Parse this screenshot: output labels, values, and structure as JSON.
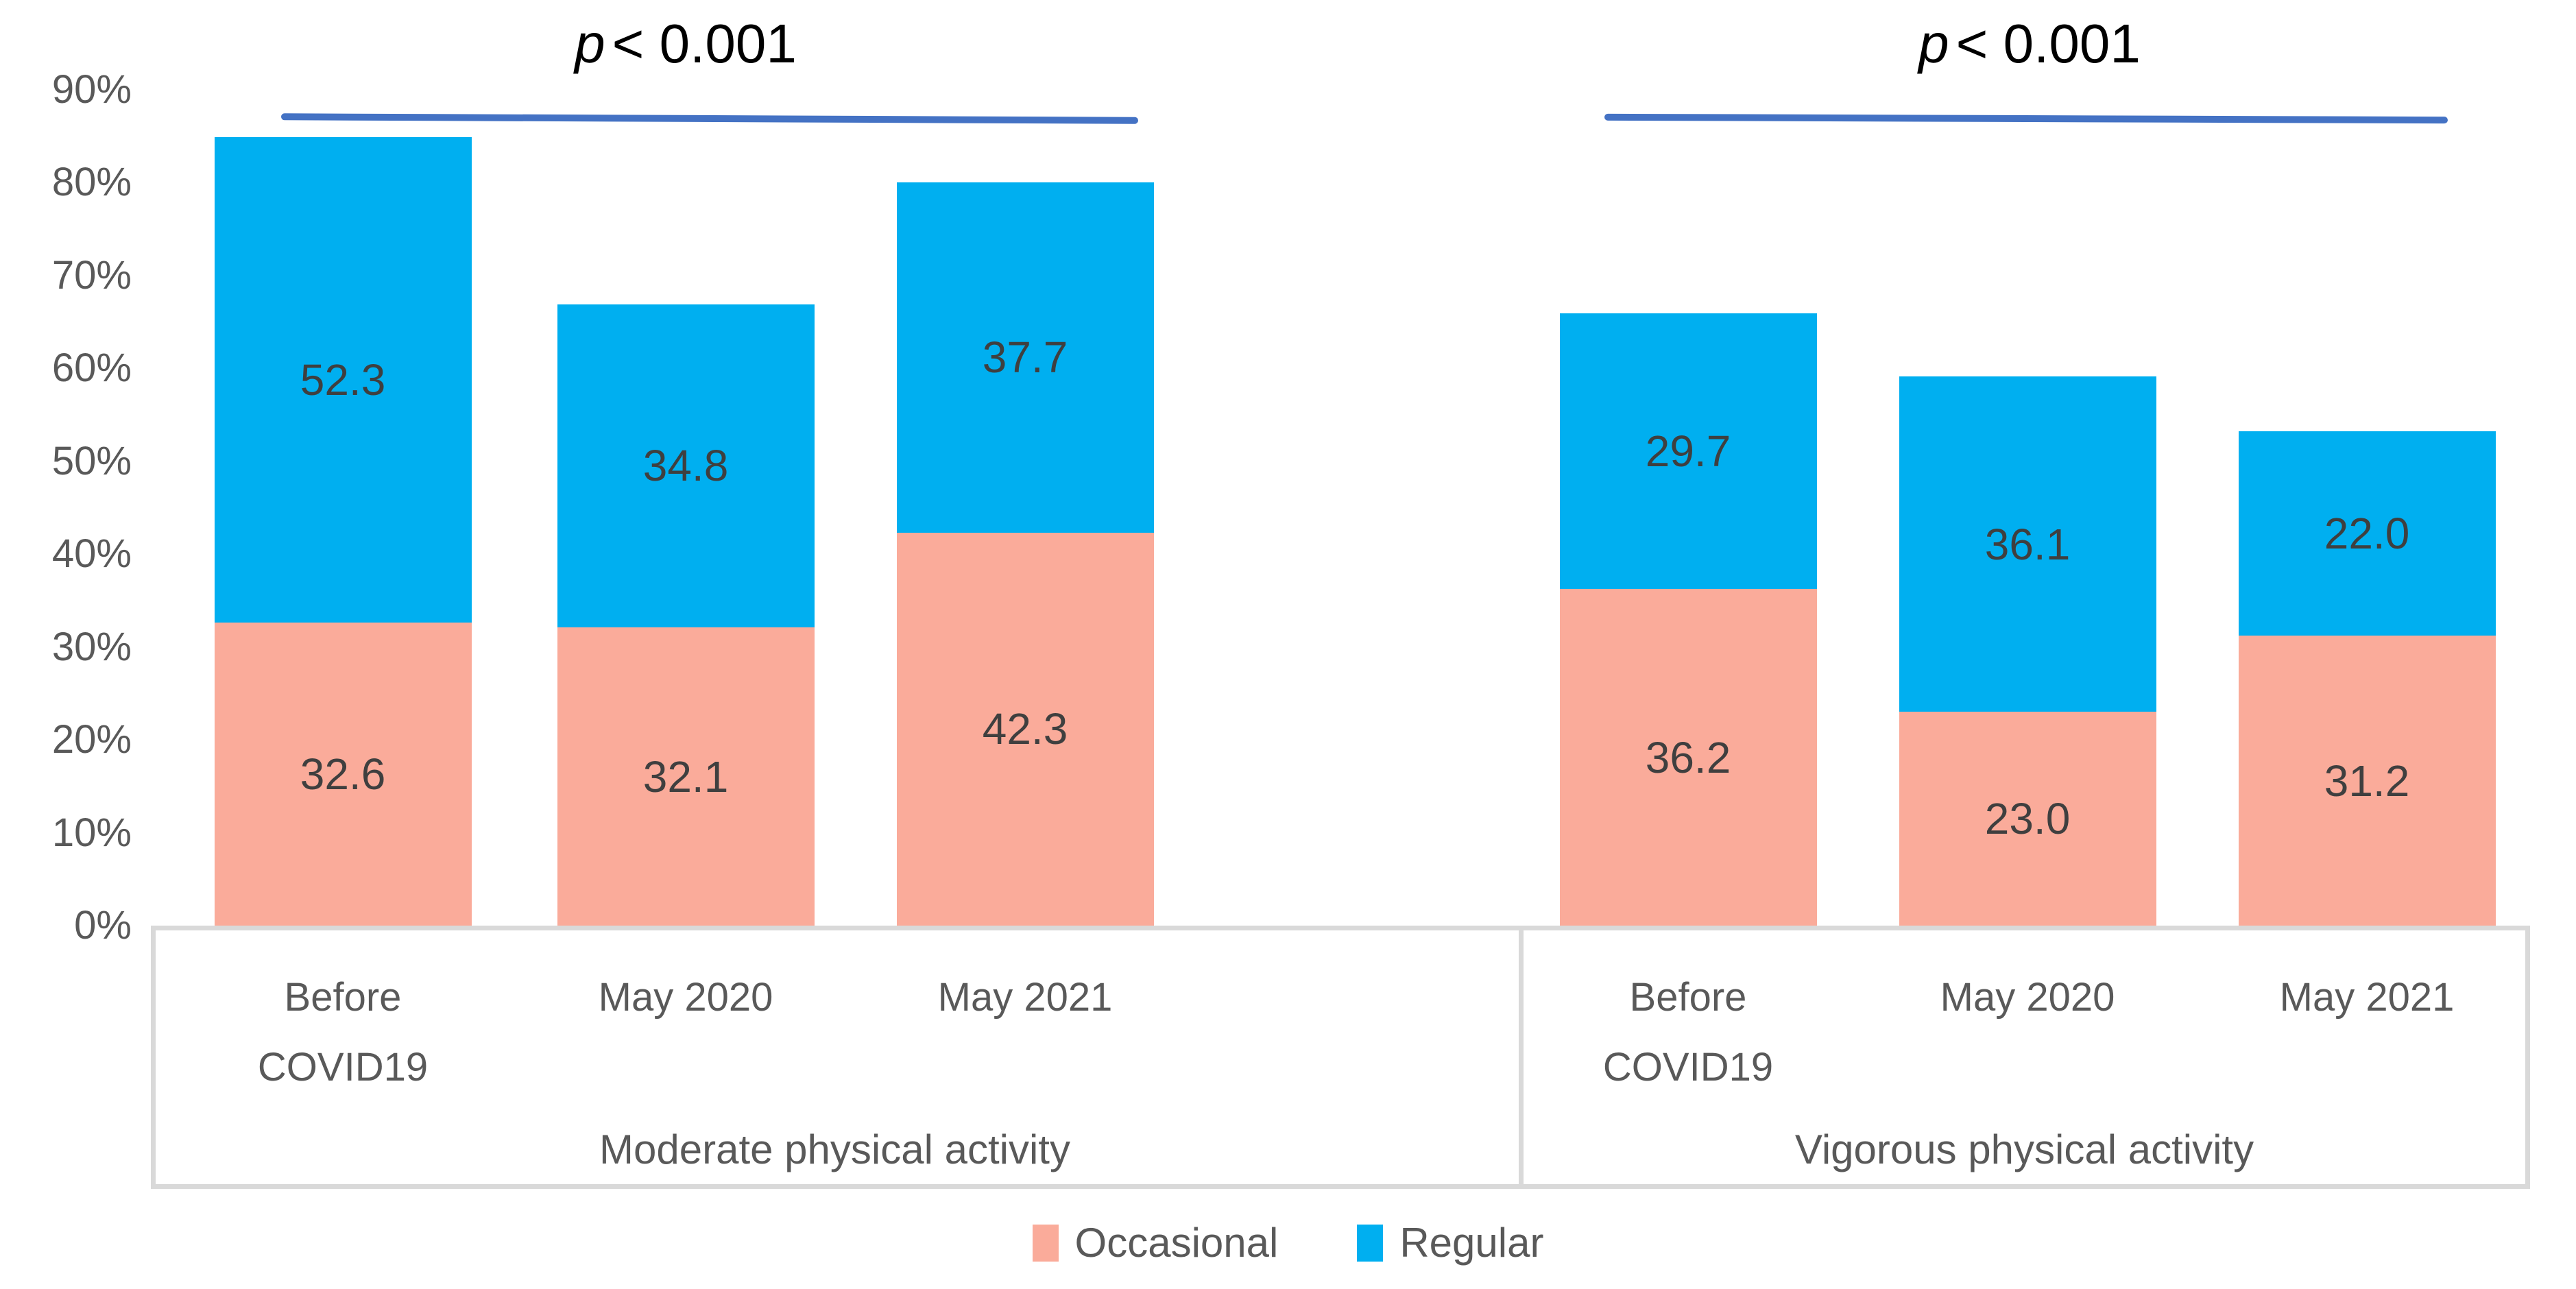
{
  "chart_data": {
    "type": "bar",
    "stacked": true,
    "unit": "%",
    "ylim": [
      0,
      90
    ],
    "grid": false,
    "legend_position": "bottom",
    "y_tick_labels": [
      "90%",
      "80%",
      "70%",
      "60%",
      "50%",
      "40%",
      "30%",
      "20%",
      "10%",
      "0%"
    ],
    "legend": [
      "Occasional",
      "Regular"
    ],
    "colors": {
      "occasional": "#FAAB9A",
      "regular": "#00AFF0",
      "axis_text": "#595959",
      "data_label": "#3F3F3F",
      "box_border": "#D9D9D9",
      "p_line": "#4472C4"
    },
    "groups": [
      {
        "label": "Moderate physical activity",
        "categories": [
          "Before COVID19",
          "May 2020",
          "May 2021"
        ],
        "series": [
          {
            "name": "Occasional",
            "values": [
              32.6,
              32.1,
              42.3
            ],
            "value_labels": [
              "32.6",
              "32.1",
              "42.3"
            ]
          },
          {
            "name": "Regular",
            "values": [
              52.3,
              34.8,
              37.7
            ],
            "value_labels": [
              "52.3",
              "34.8",
              "37.7"
            ]
          }
        ]
      },
      {
        "label": "Vigorous physical activity",
        "categories": [
          "Before COVID19",
          "May 2020",
          "May 2021"
        ],
        "series": [
          {
            "name": "Occasional",
            "values": [
              36.2,
              23.0,
              31.2
            ],
            "value_labels": [
              "36.2",
              "23.0",
              "31.2"
            ]
          },
          {
            "name": "Regular",
            "values": [
              29.7,
              36.1,
              22.0
            ],
            "value_labels": [
              "29.7",
              "36.1",
              "22.0"
            ]
          }
        ]
      }
    ],
    "p_annotations": [
      {
        "p_italic": "p",
        "p_rest": "< 0.001"
      },
      {
        "p_italic": "p",
        "p_rest": "< 0.001"
      }
    ]
  }
}
